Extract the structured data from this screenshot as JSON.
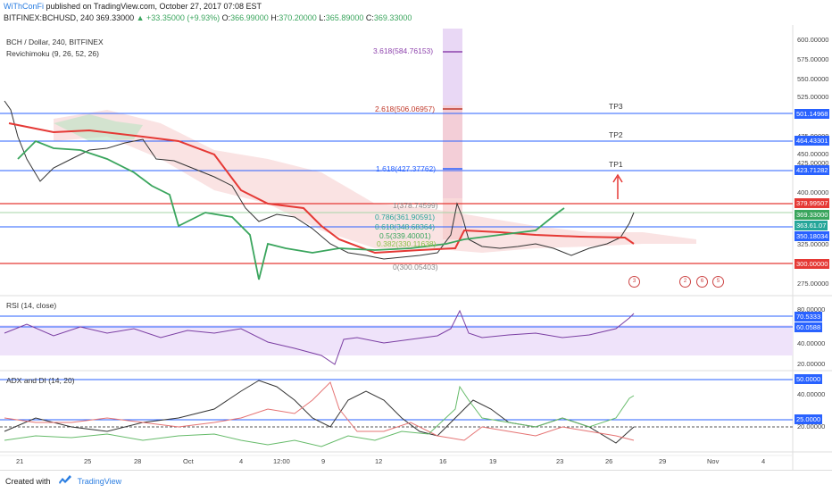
{
  "header": {
    "author": "WiThConFi",
    "published": "published on TradingView.com, October 27, 2017 07:08 EST",
    "symbol": "BITFINEX:BCHUSD, 240",
    "price": "369.33000",
    "change": "+33.35000 (+9.93%)",
    "o_label": "O:",
    "o": "366.99000",
    "h_label": "H:",
    "h": "370.20000",
    "l_label": "L:",
    "l": "365.89000",
    "c_label": "C:",
    "c": "369.33000"
  },
  "panes": {
    "main_title": "BCH / Dollar, 240, BITFINEX",
    "indicator": "Revichimoku (9, 26, 52, 26)",
    "rsi_title": "RSI (14, close)",
    "adx_title": "ADX and DI (14, 20)"
  },
  "price_axis": {
    "ticks": [
      "600.00000",
      "575.00000",
      "550.00000",
      "525.00000",
      "475.00000",
      "450.00000",
      "425.00000",
      "400.00000",
      "325.00000",
      "275.00000"
    ],
    "tags": [
      {
        "label": "501.14968",
        "color": "#2962ff"
      },
      {
        "label": "464.43301",
        "color": "#2962ff"
      },
      {
        "label": "423.71282",
        "color": "#2962ff"
      },
      {
        "label": "379.99507",
        "color": "#e53935"
      },
      {
        "label": "369.33000",
        "color": "#3aa55d"
      },
      {
        "label": "363.61.07",
        "color": "#26a69a"
      },
      {
        "label": "350.18034",
        "color": "#2962ff"
      },
      {
        "label": "300.00000",
        "color": "#e53935"
      }
    ]
  },
  "fib_levels": [
    {
      "label": "3.618(584.76153)",
      "color": "#8e44ad"
    },
    {
      "label": "2.618(506.06957)",
      "color": "#c0392b"
    },
    {
      "label": "1.618(427.37762)",
      "color": "#2962ff"
    },
    {
      "label": "1(378.74599)",
      "color": "#888888"
    },
    {
      "label": "0.786(361.90591)",
      "color": "#26a69a"
    },
    {
      "label": "0.618(348.68364)",
      "color": "#26a69a"
    },
    {
      "label": "0.5(339.40001)",
      "color": "#3aa55d"
    },
    {
      "label": "0.382(330.11638)",
      "color": "#8bc34a"
    },
    {
      "label": "0(300.05403)",
      "color": "#888888"
    }
  ],
  "targets": [
    "TP3",
    "TP2",
    "TP1"
  ],
  "rsi_axis": {
    "ticks": [
      "80.00000",
      "40.00000",
      "20.00000"
    ],
    "tags": [
      {
        "label": "70.5333",
        "color": "#2962ff"
      },
      {
        "label": "60.0588",
        "color": "#2962ff"
      }
    ]
  },
  "adx_axis": {
    "ticks": [
      "40.00000",
      "20.00000"
    ],
    "tags": [
      {
        "label": "50.0000",
        "color": "#2962ff"
      },
      {
        "label": "25.0000",
        "color": "#2962ff"
      }
    ]
  },
  "time_axis": [
    "21",
    "25",
    "28",
    "Oct",
    "4",
    "12:00",
    "9",
    "12",
    "16",
    "19",
    "23",
    "26",
    "29",
    "Nov",
    "4"
  ],
  "events": [
    "3",
    "2",
    "6",
    "5"
  ],
  "footer": {
    "created_with": "Created with",
    "brand": "TradingView"
  },
  "colors": {
    "accent": "#2962ff",
    "bull": "#3aa55d",
    "bear": "#e53935",
    "cloud_green": "#3aa55d",
    "cloud_red": "#e57373",
    "rsi_band": "#e8d8f5"
  }
}
